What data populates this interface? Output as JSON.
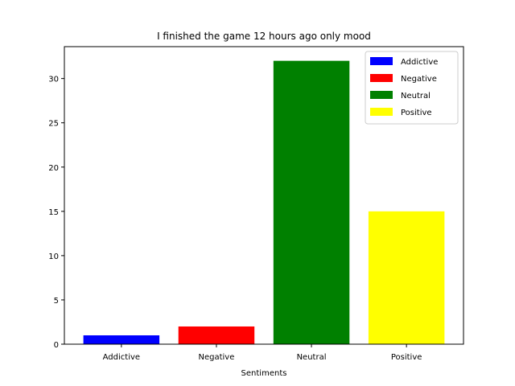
{
  "chart_data": {
    "type": "bar",
    "title": "I finished the game 12 hours ago only mood",
    "xlabel": "Sentiments",
    "ylabel": "",
    "categories": [
      "Addictive",
      "Negative",
      "Neutral",
      "Positive"
    ],
    "values": [
      1,
      2,
      32,
      15
    ],
    "colors": [
      "#0000ff",
      "#ff0000",
      "#008000",
      "#ffff00"
    ],
    "ylim": [
      0,
      33.6
    ],
    "yticks": [
      0,
      5,
      10,
      15,
      20,
      25,
      30
    ],
    "grid": false,
    "legend": {
      "position": "top-right",
      "entries": [
        {
          "label": "Addictive",
          "color": "#0000ff"
        },
        {
          "label": "Negative",
          "color": "#ff0000"
        },
        {
          "label": "Neutral",
          "color": "#008000"
        },
        {
          "label": "Positive",
          "color": "#ffff00"
        }
      ]
    }
  }
}
